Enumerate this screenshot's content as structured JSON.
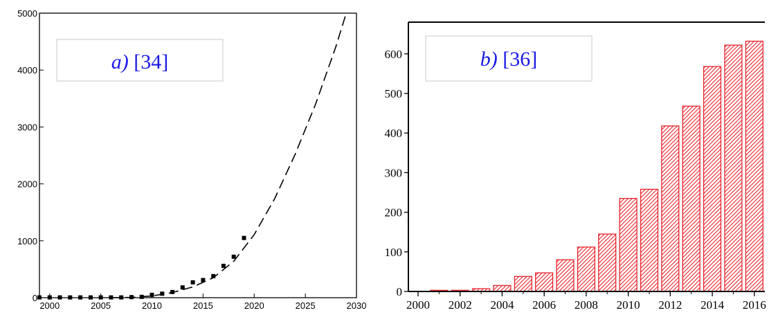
{
  "chart_data": [
    {
      "type": "scatter",
      "panel_label": {
        "letter": "a)",
        "ref": "[34]"
      },
      "xlim": [
        1999,
        2030
      ],
      "ylim": [
        0,
        5000
      ],
      "xticks": [
        2000,
        2005,
        2010,
        2015,
        2020,
        2025,
        2030
      ],
      "yticks": [
        0,
        1000,
        2000,
        3000,
        4000,
        5000
      ],
      "points": {
        "x": [
          1999,
          2000,
          2001,
          2002,
          2003,
          2004,
          2005,
          2006,
          2007,
          2008,
          2009,
          2010,
          2011,
          2012,
          2013,
          2014,
          2015,
          2016,
          2017,
          2018,
          2019
        ],
        "y": [
          5,
          5,
          5,
          5,
          5,
          5,
          5,
          5,
          5,
          10,
          15,
          50,
          70,
          100,
          180,
          270,
          310,
          380,
          560,
          720,
          1050
        ]
      },
      "fit_curve": {
        "style": "dashed",
        "x": [
          2006,
          2008,
          2010,
          2012,
          2014,
          2016,
          2018,
          2020,
          2022,
          2024,
          2026,
          2028,
          2029
        ],
        "y": [
          0,
          5,
          30,
          90,
          190,
          350,
          640,
          1110,
          1740,
          2520,
          3400,
          4420,
          5000
        ]
      },
      "grid": false,
      "marker_color": "#000000"
    },
    {
      "type": "bar",
      "panel_label": {
        "letter": "b)",
        "ref": "[36]"
      },
      "categories": [
        2001,
        2002,
        2003,
        2004,
        2005,
        2006,
        2007,
        2008,
        2009,
        2010,
        2011,
        2012,
        2013,
        2014,
        2015,
        2016
      ],
      "values": [
        3,
        3,
        7,
        15,
        38,
        47,
        80,
        112,
        145,
        235,
        258,
        418,
        468,
        568,
        622,
        632
      ],
      "xlim": [
        2000,
        2016.5
      ],
      "ylim": [
        0,
        680
      ],
      "xticks": [
        2000,
        2002,
        2004,
        2006,
        2008,
        2010,
        2012,
        2014,
        2016
      ],
      "yticks": [
        0,
        100,
        200,
        300,
        400,
        500,
        600
      ],
      "grid": false,
      "bar_color": "#e8232a",
      "bar_fill": "hatched"
    }
  ]
}
